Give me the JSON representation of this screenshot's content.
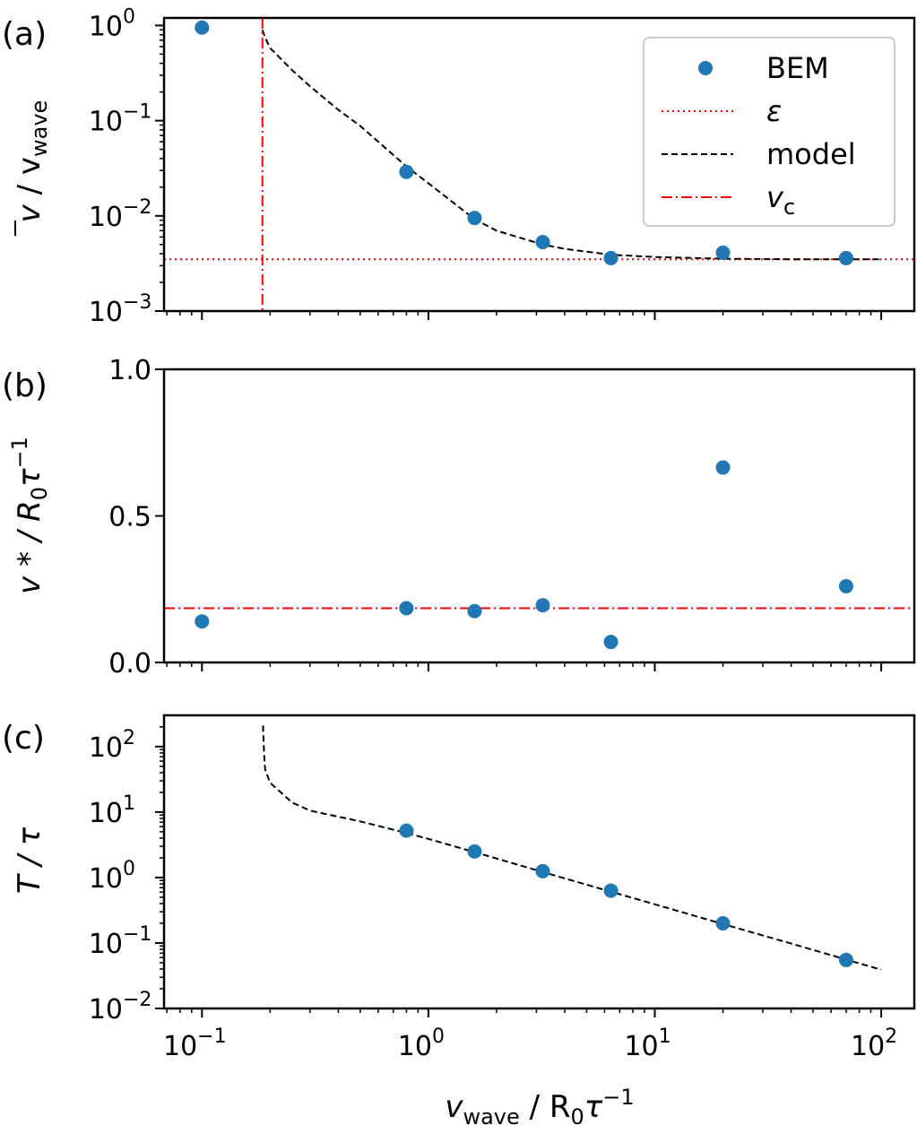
{
  "chart_data": [
    {
      "panel": "(a)",
      "type": "scatter",
      "yscale": "log",
      "ylabel": "v̄ / v_wave",
      "ylim": [
        0.001,
        1.2
      ],
      "yticks": [
        {
          "exp": 0,
          "label": "10",
          "sup": "0"
        },
        {
          "exp": -1,
          "label": "10",
          "sup": "−1"
        },
        {
          "exp": -2,
          "label": "10",
          "sup": "−2"
        },
        {
          "exp": -3,
          "label": "10",
          "sup": "−3"
        }
      ],
      "series": [
        {
          "name": "BEM",
          "kind": "points",
          "color": "#1f77b4",
          "x": [
            0.1,
            0.8,
            1.6,
            3.2,
            6.4,
            20,
            70
          ],
          "y": [
            0.95,
            0.029,
            0.0095,
            0.0053,
            0.0036,
            0.0041,
            0.0036
          ]
        },
        {
          "name": "ε",
          "kind": "hline",
          "color": "#ff0000",
          "y": 0.0035
        },
        {
          "name": "model",
          "kind": "curve",
          "color": "#000000",
          "x": [
            0.185,
            0.19,
            0.2,
            0.25,
            0.3,
            0.4,
            0.5,
            0.8,
            1.0,
            1.6,
            2.0,
            3.2,
            4.0,
            6.4,
            10,
            20,
            40,
            70,
            100
          ],
          "y": [
            0.9,
            0.75,
            0.58,
            0.34,
            0.23,
            0.13,
            0.088,
            0.033,
            0.022,
            0.0092,
            0.007,
            0.005,
            0.0045,
            0.0039,
            0.0037,
            0.00355,
            0.0035,
            0.0035,
            0.0035
          ]
        },
        {
          "name": "v_c",
          "kind": "vline",
          "color": "#ff0000",
          "x": 0.185
        }
      ],
      "legend": {
        "placement": "top-right",
        "entries": [
          {
            "label": "BEM",
            "style": "dot",
            "color": "#1f77b4"
          },
          {
            "label": "ε",
            "style": "dotted",
            "color": "#ff0000"
          },
          {
            "label": "model",
            "style": "dashed",
            "color": "#000000"
          },
          {
            "label": "v",
            "sub": "c",
            "style": "dashdot",
            "color": "#ff0000"
          }
        ]
      }
    },
    {
      "panel": "(b)",
      "type": "scatter",
      "yscale": "linear",
      "ylabel": "v* / R₀τ⁻¹",
      "ylim": [
        0.0,
        1.0
      ],
      "yticks": [
        {
          "value": 0.0,
          "label": "0.0"
        },
        {
          "value": 0.5,
          "label": "0.5"
        },
        {
          "value": 1.0,
          "label": "1.0"
        }
      ],
      "series": [
        {
          "name": "BEM",
          "kind": "points",
          "color": "#1f77b4",
          "x": [
            0.1,
            0.8,
            1.6,
            3.2,
            6.4,
            20,
            70
          ],
          "y": [
            0.14,
            0.185,
            0.175,
            0.195,
            0.07,
            0.665,
            0.26
          ]
        },
        {
          "name": "v_c",
          "kind": "hline",
          "color": "#ff0000",
          "y": 0.185
        }
      ]
    },
    {
      "panel": "(c)",
      "type": "scatter",
      "yscale": "log",
      "ylabel": "T / τ",
      "ylim": [
        0.01,
        300
      ],
      "yticks": [
        {
          "exp": 2,
          "label": "10",
          "sup": "2"
        },
        {
          "exp": 1,
          "label": "10",
          "sup": "1"
        },
        {
          "exp": 0,
          "label": "10",
          "sup": "0"
        },
        {
          "exp": -1,
          "label": "10",
          "sup": "−1"
        },
        {
          "exp": -2,
          "label": "10",
          "sup": "−2"
        }
      ],
      "series": [
        {
          "name": "BEM",
          "kind": "points",
          "color": "#1f77b4",
          "x": [
            0.8,
            1.6,
            3.2,
            6.4,
            20,
            70
          ],
          "y": [
            5.2,
            2.5,
            1.25,
            0.63,
            0.2,
            0.055
          ]
        },
        {
          "name": "model",
          "kind": "curve",
          "color": "#000000",
          "x": [
            0.186,
            0.188,
            0.19,
            0.2,
            0.25,
            0.3,
            0.5,
            0.8,
            1.0,
            2.0,
            4.0,
            10,
            20,
            40,
            70,
            100
          ],
          "y": [
            210,
            80,
            45,
            28,
            14,
            10.5,
            7.2,
            4.8,
            3.9,
            1.95,
            0.97,
            0.39,
            0.195,
            0.098,
            0.056,
            0.039
          ]
        }
      ]
    }
  ],
  "xaxis": {
    "scale": "log",
    "xlim": [
      0.068,
      140
    ],
    "xlabel": "v_wave / R₀τ⁻¹",
    "ticks": [
      {
        "exp": -1,
        "label": "10",
        "sup": "−1"
      },
      {
        "exp": 0,
        "label": "10",
        "sup": "0"
      },
      {
        "exp": 1,
        "label": "10",
        "sup": "1"
      },
      {
        "exp": 2,
        "label": "10",
        "sup": "2"
      }
    ]
  },
  "text": {
    "panel_a": "(a)",
    "panel_b": "(b)",
    "panel_c": "(c)",
    "ylabel_a_main": "v",
    "ylabel_a_slash": " / v",
    "ylabel_a_sub": "wave",
    "ylabel_b_main": "v * / R",
    "ylabel_b_sub": "0",
    "ylabel_b_tau": "τ",
    "ylabel_b_sup": "−1",
    "ylabel_c": "T / τ",
    "xlabel_v": "v",
    "xlabel_sub": "wave",
    "xlabel_mid": " / R",
    "xlabel_sub0": "0",
    "xlabel_tau": "τ",
    "xlabel_sup": "−1"
  }
}
